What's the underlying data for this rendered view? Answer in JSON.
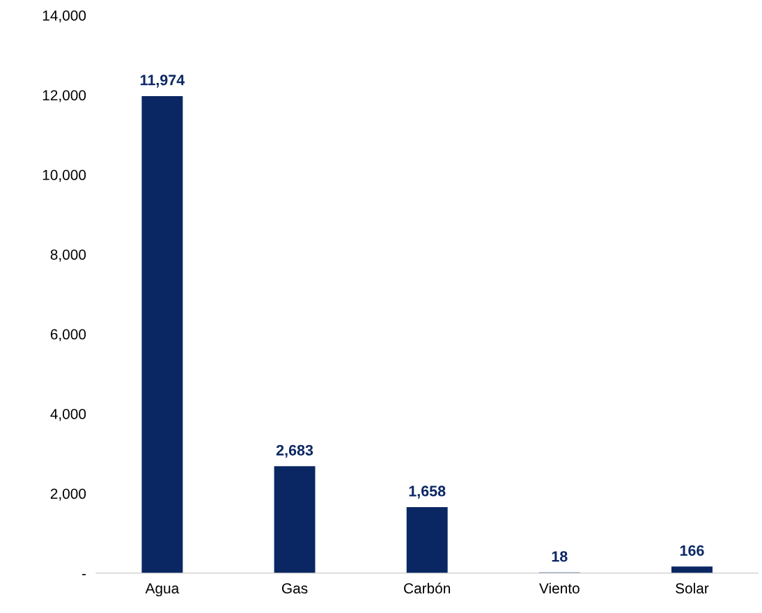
{
  "chart_data": {
    "type": "bar",
    "categories": [
      "Agua",
      "Gas",
      "Carbón",
      "Viento",
      "Solar"
    ],
    "values": [
      11974,
      2683,
      1658,
      18,
      166
    ],
    "value_labels": [
      "11,974",
      "2,683",
      "1,658",
      "18",
      "166"
    ],
    "color": "#0b2763",
    "ylim": [
      0,
      14000
    ],
    "yticks": [
      {
        "value": 0,
        "label": "-"
      },
      {
        "value": 2000,
        "label": "2,000"
      },
      {
        "value": 4000,
        "label": "4,000"
      },
      {
        "value": 6000,
        "label": "6,000"
      },
      {
        "value": 8000,
        "label": "8,000"
      },
      {
        "value": 10000,
        "label": "10,000"
      },
      {
        "value": 12000,
        "label": "12,000"
      },
      {
        "value": 14000,
        "label": "14,000"
      }
    ],
    "grid": false,
    "legend": false
  }
}
